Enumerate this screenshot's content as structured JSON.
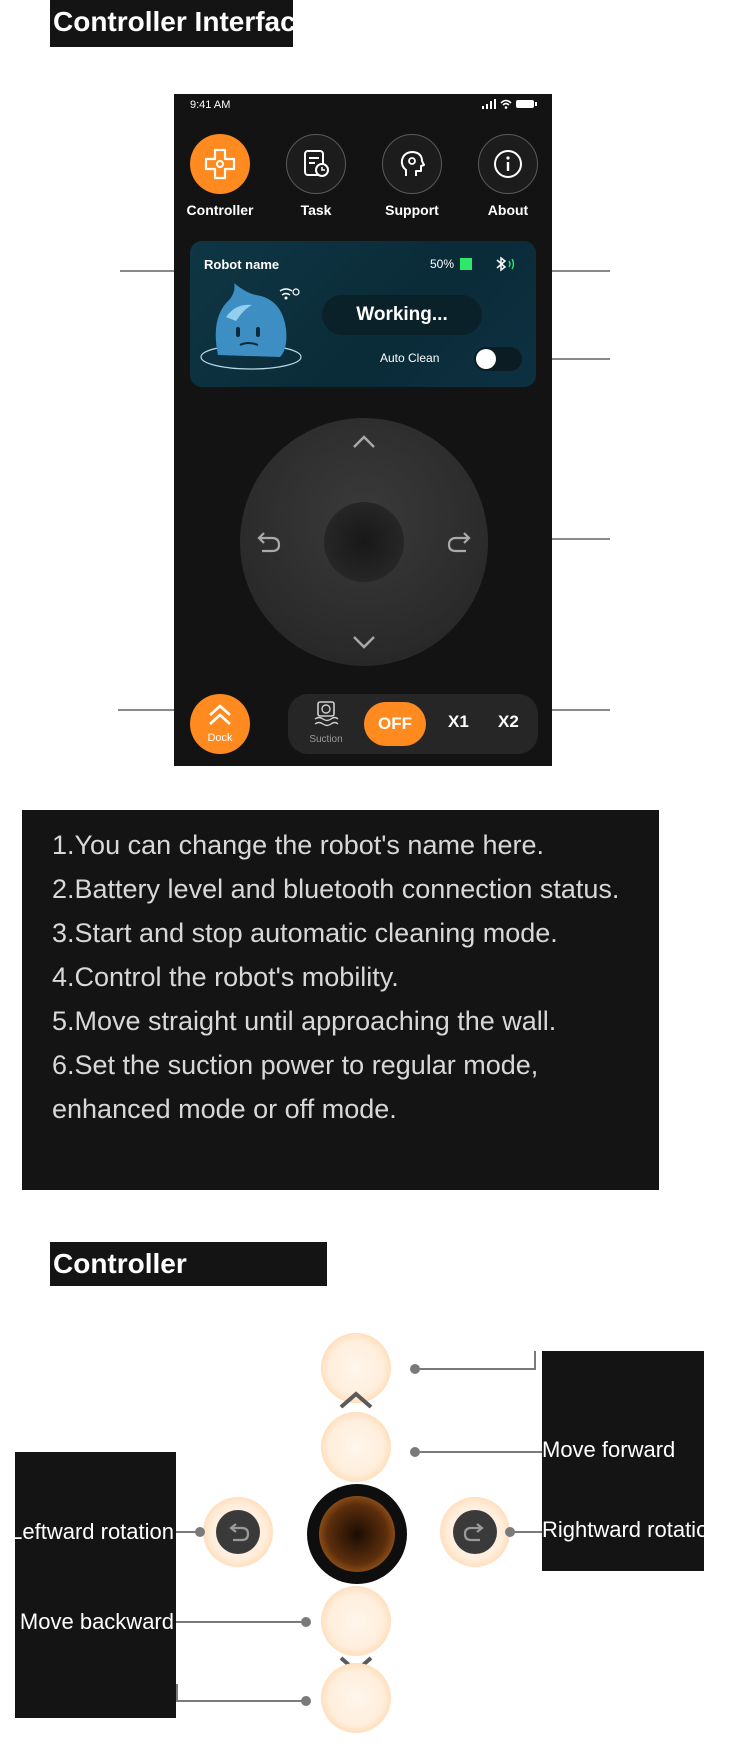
{
  "sections": {
    "interface_title": "Controller Interface",
    "controller_title": "Controller"
  },
  "phone": {
    "status_time": "9:41 AM",
    "nav": [
      {
        "label": "Controller",
        "icon": "gamepad-icon"
      },
      {
        "label": "Task",
        "icon": "task-clock-icon"
      },
      {
        "label": "Support",
        "icon": "support-head-icon"
      },
      {
        "label": "About",
        "icon": "info-icon"
      }
    ],
    "robot_card": {
      "name": "Robot name",
      "battery": "50%",
      "status": "Working...",
      "auto_clean_label": "Auto Clean"
    },
    "dock_label": "Dock",
    "suction": {
      "label": "Suction",
      "options": [
        "OFF",
        "X1",
        "X2"
      ],
      "selected": "OFF"
    }
  },
  "description": {
    "lines": [
      "1.You can change the robot's name here.",
      "2.Battery level and bluetooth connection status.",
      "3.Start and stop automatic cleaning mode.",
      "4.Control the robot's mobility.",
      "5.Move straight until approaching the wall.",
      "6.Set the suction power to regular mode,",
      "enhanced mode or off mode."
    ]
  },
  "controller_diagram": {
    "labels": {
      "move_forward": "Move forward",
      "leftward_rotation": "Leftward rotation",
      "rightward_rotation": "Rightward rotation",
      "move_backward": "Move backward"
    }
  },
  "colors": {
    "accent": "#ff8a1f",
    "panel": "#141414",
    "card": "#0d3142"
  }
}
